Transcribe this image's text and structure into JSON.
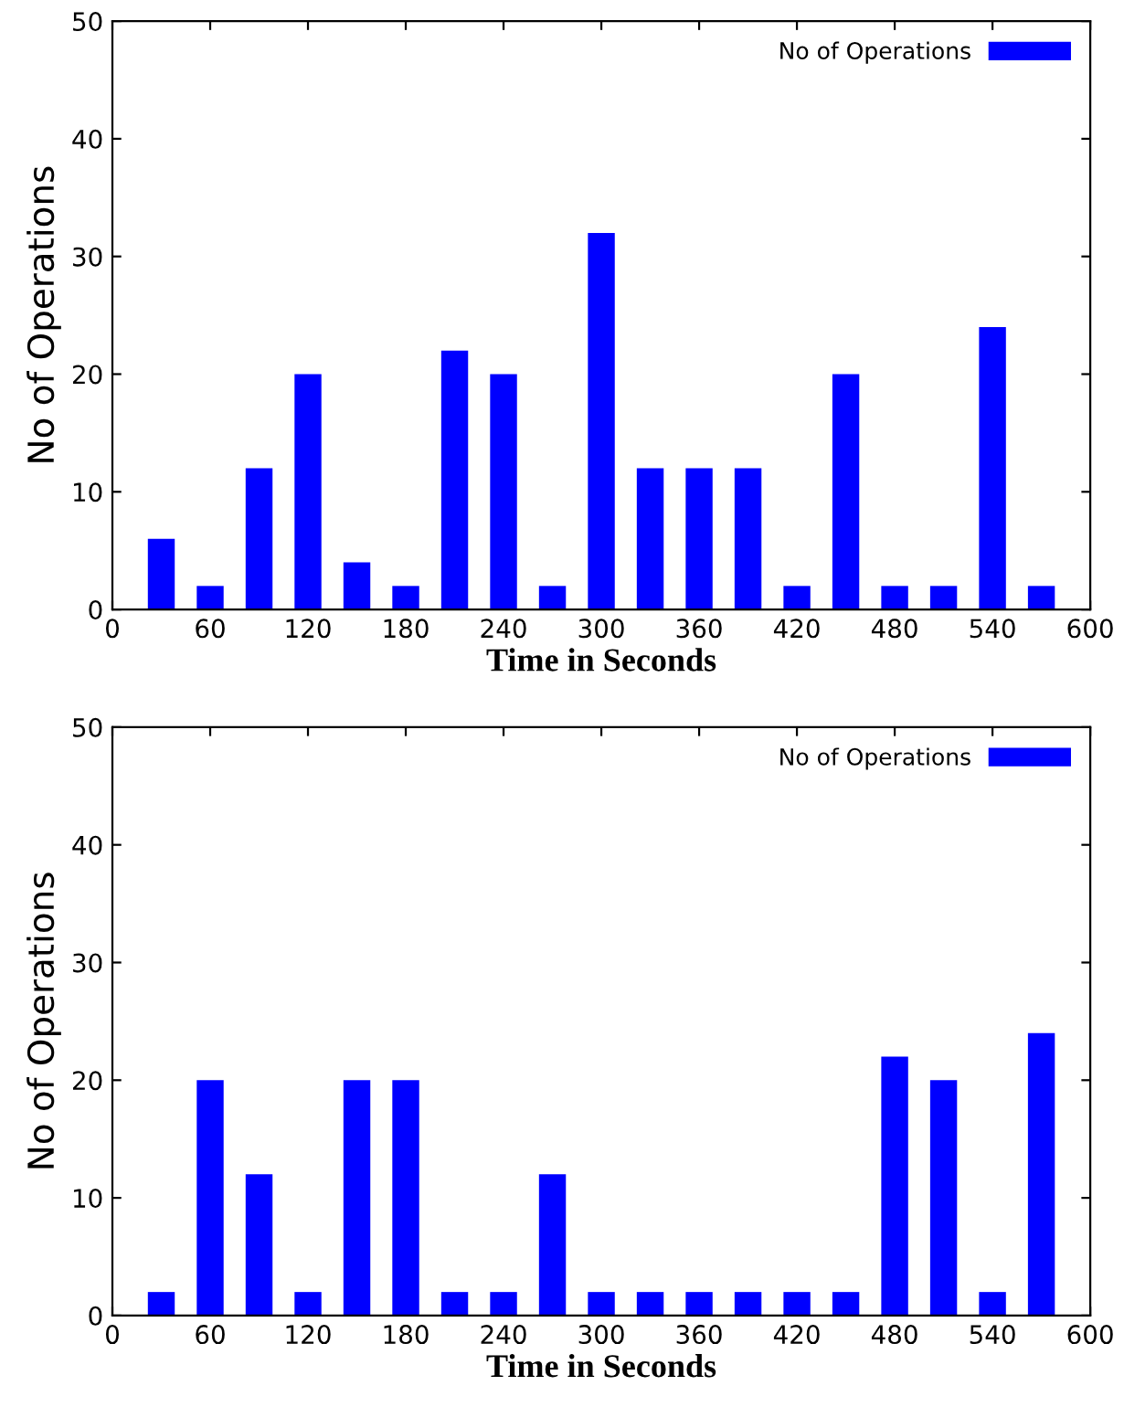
{
  "chart_data": [
    {
      "type": "bar",
      "xlabel": "Time in Seconds",
      "ylabel": "No of Operations",
      "x": [
        30,
        60,
        90,
        120,
        150,
        180,
        210,
        240,
        270,
        300,
        330,
        360,
        390,
        420,
        450,
        480,
        510,
        540,
        570
      ],
      "series": [
        {
          "name": "No of Operations",
          "color": "#0000ff",
          "values": [
            6,
            2,
            12,
            20,
            4,
            2,
            22,
            20,
            2,
            32,
            12,
            12,
            12,
            2,
            20,
            2,
            2,
            24,
            2
          ]
        }
      ],
      "xlim": [
        0,
        600
      ],
      "xticks": [
        0,
        60,
        120,
        180,
        240,
        300,
        360,
        420,
        480,
        540,
        600
      ],
      "ylim": [
        0,
        50
      ],
      "yticks": [
        0,
        10,
        20,
        30,
        40,
        50
      ],
      "legend": "top right",
      "grid": false
    },
    {
      "type": "bar",
      "xlabel": "Time in Seconds",
      "ylabel": "No of Operations",
      "x": [
        30,
        60,
        90,
        120,
        150,
        180,
        210,
        240,
        270,
        300,
        330,
        360,
        390,
        420,
        450,
        480,
        510,
        540,
        570
      ],
      "series": [
        {
          "name": "No of Operations",
          "color": "#0000ff",
          "values": [
            2,
            20,
            12,
            2,
            20,
            20,
            2,
            2,
            12,
            2,
            2,
            2,
            2,
            2,
            2,
            22,
            20,
            2,
            24
          ]
        }
      ],
      "xlim": [
        0,
        600
      ],
      "xticks": [
        0,
        60,
        120,
        180,
        240,
        300,
        360,
        420,
        480,
        540,
        600
      ],
      "ylim": [
        0,
        50
      ],
      "yticks": [
        0,
        10,
        20,
        30,
        40,
        50
      ],
      "legend": "top right",
      "grid": false
    }
  ]
}
